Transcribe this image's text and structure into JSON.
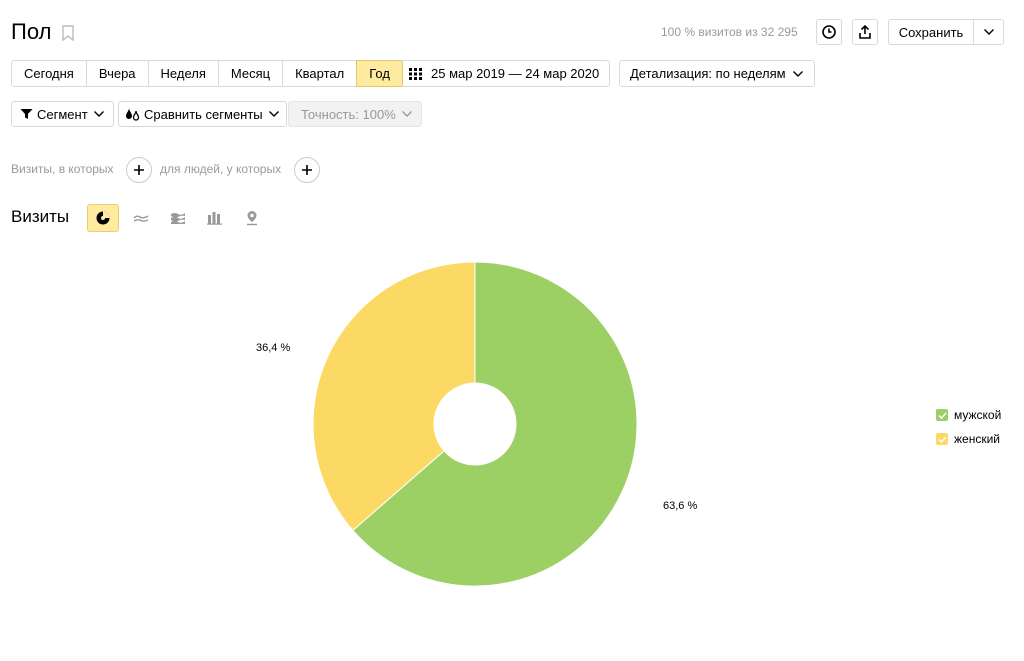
{
  "header": {
    "title": "Пол",
    "visits_info": "100 % визитов из 32 295",
    "save_label": "Сохранить"
  },
  "periods": {
    "items": [
      "Сегодня",
      "Вчера",
      "Неделя",
      "Месяц",
      "Квартал",
      "Год"
    ],
    "active": "Год"
  },
  "date_range": "25 мар 2019 — 24 мар 2020",
  "detail_label": "Детализация: по неделям",
  "segment_label": "Сегмент",
  "compare_label": "Сравнить сегменты",
  "accuracy_label": "Точность: 100%",
  "conditions": {
    "visits_label": "Визиты, в которых",
    "people_label": "для людей, у которых"
  },
  "chart_section": {
    "label": "Визиты",
    "chart_types": [
      "pie-chart-icon",
      "line-chart-icon",
      "area-chart-icon",
      "bar-chart-icon",
      "map-icon"
    ],
    "active_type": "pie-chart-icon"
  },
  "colors": {
    "male": "#9ccf64",
    "female": "#fcd965",
    "active_button": "#ffeba0"
  },
  "chart_data": {
    "type": "pie",
    "donut": true,
    "series": [
      {
        "name": "мужской",
        "value": 63.6,
        "label": "63,6 %",
        "color": "#9ccf64"
      },
      {
        "name": "женский",
        "value": 36.4,
        "label": "36,4 %",
        "color": "#fcd965"
      }
    ],
    "legend_position": "right"
  }
}
